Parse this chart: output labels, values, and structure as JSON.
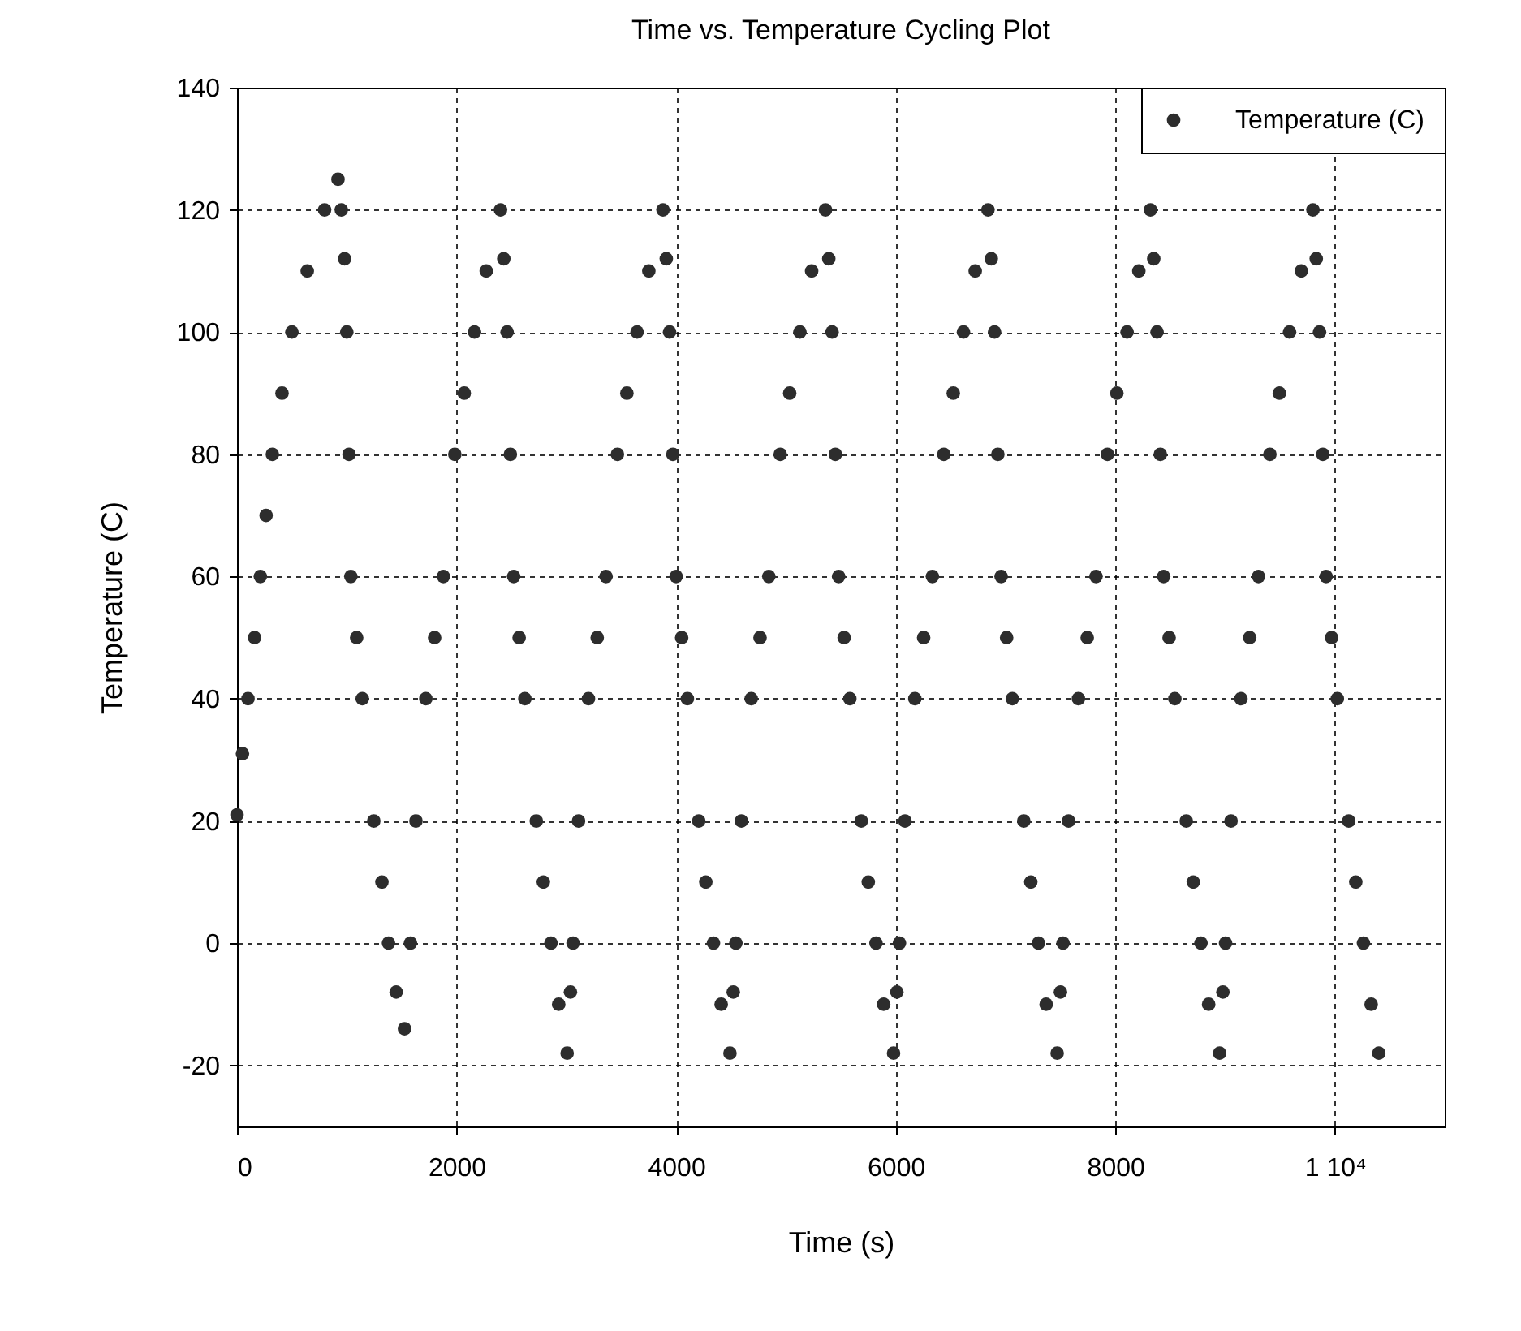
{
  "chart_data": {
    "type": "scatter",
    "title": "Time vs. Temperature Cycling Plot",
    "xlabel": "Time (s)",
    "ylabel": "Temperature (C)",
    "x": [
      0,
      50,
      100,
      160,
      213,
      265,
      322,
      410,
      500,
      640,
      798,
      920,
      950,
      980,
      1000,
      1020,
      1037,
      1090,
      1141,
      1246,
      1320,
      1380,
      1450,
      1526,
      1580,
      1630,
      1720,
      1800,
      1880,
      1984,
      2070,
      2163,
      2270,
      2400,
      2430,
      2460,
      2490,
      2520,
      2570,
      2622,
      2726,
      2790,
      2860,
      2930,
      3007,
      3037,
      3061,
      3111,
      3201,
      3281,
      3361,
      3465,
      3551,
      3644,
      3751,
      3880,
      3910,
      3940,
      3970,
      4000,
      4050,
      4102,
      4206,
      4270,
      4340,
      4410,
      4490,
      4520,
      4544,
      4594,
      4684,
      4764,
      4844,
      4948,
      5034,
      5127,
      5234,
      5360,
      5390,
      5420,
      5450,
      5480,
      5530,
      5582,
      5686,
      5750,
      5820,
      5890,
      5980,
      6010,
      6034,
      6084,
      6174,
      6254,
      6334,
      6438,
      6524,
      6617,
      6724,
      6840,
      6870,
      6900,
      6930,
      6960,
      7010,
      7062,
      7166,
      7230,
      7300,
      7370,
      7470,
      7500,
      7524,
      7574,
      7664,
      7744,
      7824,
      7928,
      8014,
      8107,
      8214,
      8320,
      8350,
      8380,
      8410,
      8440,
      8490,
      8542,
      8646,
      8710,
      8780,
      8850,
      8950,
      8980,
      9004,
      9054,
      9144,
      9224,
      9304,
      9408,
      9494,
      9587,
      9694,
      9800,
      9830,
      9860,
      9890,
      9920,
      9970,
      10022,
      10126,
      10190,
      10260,
      10330,
      10400
    ],
    "series": [
      {
        "name": "Temperature (C)",
        "color": "#2d2d2d",
        "values": [
          21,
          31,
          40,
          50,
          60,
          70,
          80,
          90,
          100,
          110,
          120,
          125,
          120,
          112,
          100,
          80,
          60,
          50,
          40,
          20,
          10,
          0,
          -8,
          -14,
          0,
          20,
          40,
          50,
          60,
          80,
          90,
          100,
          110,
          120,
          112,
          100,
          80,
          60,
          50,
          40,
          20,
          10,
          0,
          -10,
          -18,
          -8,
          0,
          20,
          40,
          50,
          60,
          80,
          90,
          100,
          110,
          120,
          112,
          100,
          80,
          60,
          50,
          40,
          20,
          10,
          0,
          -10,
          -18,
          -8,
          0,
          20,
          40,
          50,
          60,
          80,
          90,
          100,
          110,
          120,
          112,
          100,
          80,
          60,
          50,
          40,
          20,
          10,
          0,
          -10,
          -18,
          -8,
          0,
          20,
          40,
          50,
          60,
          80,
          90,
          100,
          110,
          120,
          112,
          100,
          80,
          60,
          50,
          40,
          20,
          10,
          0,
          -10,
          -18,
          -8,
          0,
          20,
          40,
          50,
          60,
          80,
          90,
          100,
          110,
          120,
          112,
          100,
          80,
          60,
          50,
          40,
          20,
          10,
          0,
          -10,
          -18,
          -8,
          0,
          20,
          40,
          50,
          60,
          80,
          90,
          100,
          110,
          120,
          112,
          100,
          80,
          60,
          50,
          40,
          20,
          10,
          0,
          -10,
          -18
        ]
      }
    ],
    "xlim": [
      0,
      11000
    ],
    "xticks": [
      0,
      2000,
      4000,
      6000,
      8000,
      {
        "value": 10000,
        "label": "1 10⁴"
      }
    ],
    "ylim": [
      -30,
      140
    ],
    "yticks": [
      -20,
      0,
      20,
      40,
      60,
      80,
      100,
      120,
      140
    ],
    "grid": true,
    "legend": "top right",
    "marker": "circle"
  }
}
